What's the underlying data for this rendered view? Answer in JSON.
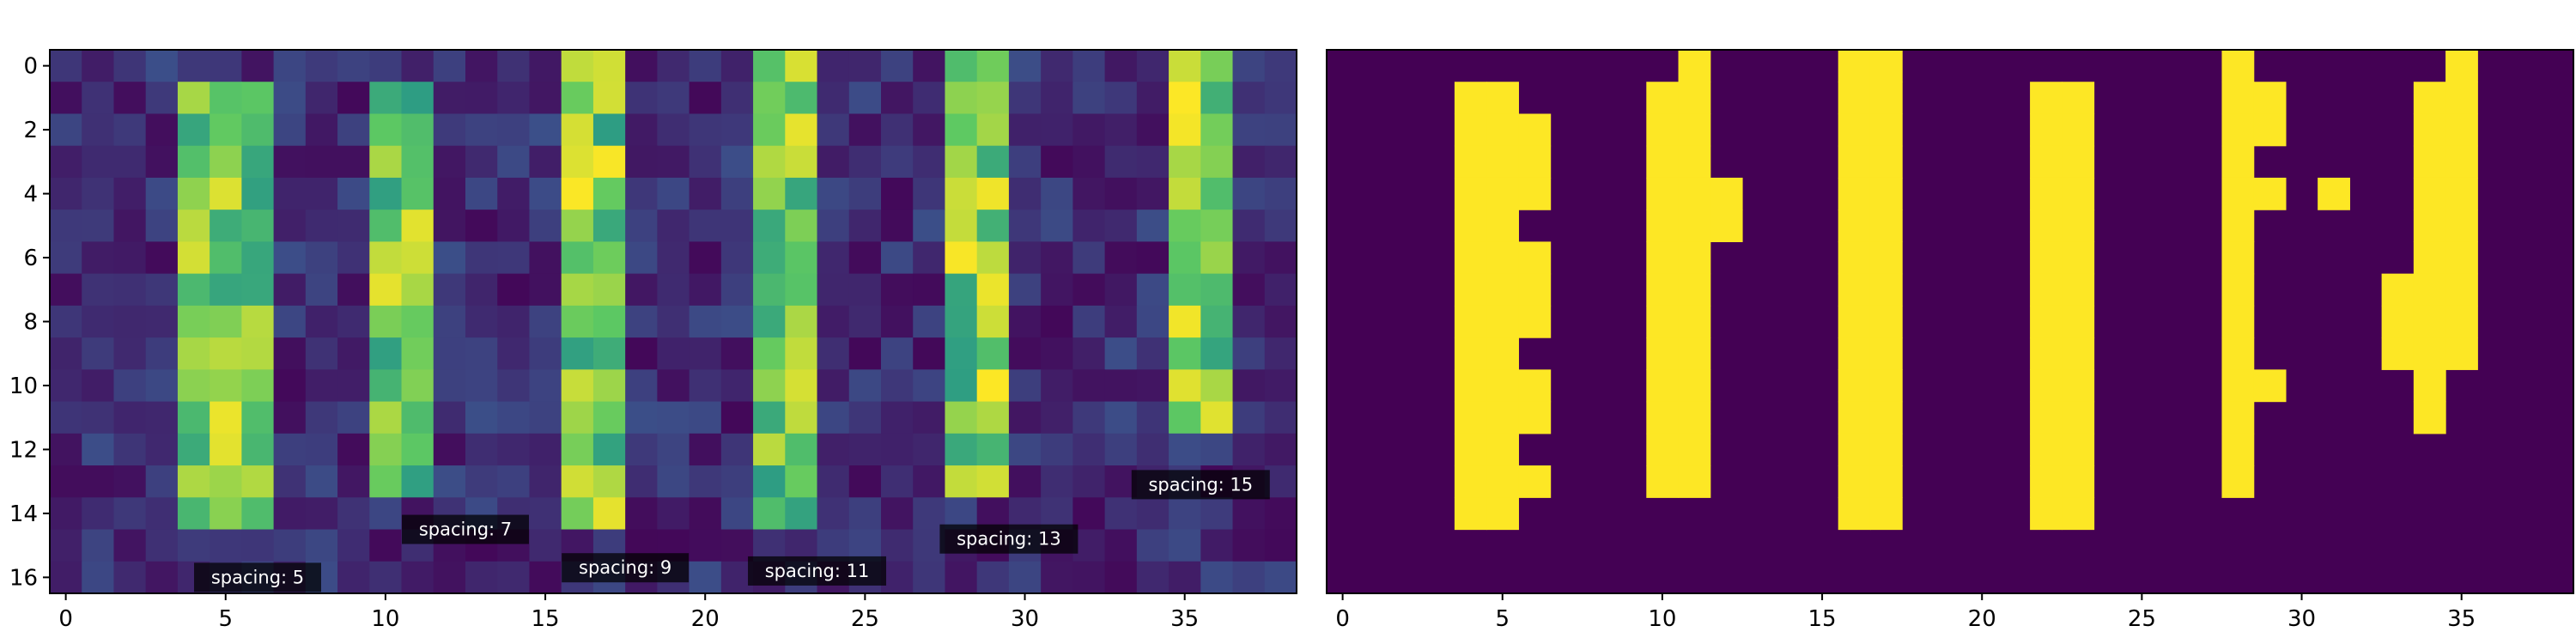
{
  "chart_data": [
    {
      "type": "heatmap",
      "title": "",
      "xlabel": "",
      "ylabel": "",
      "colormap": "viridis",
      "grid": false,
      "xlim": [
        0,
        39
      ],
      "ylim": [
        17,
        0
      ],
      "xticks": [
        "0",
        "5",
        "10",
        "15",
        "20",
        "25",
        "30",
        "35"
      ],
      "yticks": [
        "0",
        "2",
        "4",
        "6",
        "8",
        "10",
        "12",
        "14",
        "16"
      ],
      "bars": [
        {
          "cols": [
            4,
            5,
            6
          ],
          "rows": [
            1,
            14
          ]
        },
        {
          "cols": [
            10,
            11
          ],
          "rows": [
            1,
            13
          ]
        },
        {
          "cols": [
            16,
            17
          ],
          "rows": [
            0,
            14
          ]
        },
        {
          "cols": [
            22,
            23
          ],
          "rows": [
            0,
            14
          ]
        },
        {
          "cols": [
            28,
            29
          ],
          "rows": [
            0,
            13
          ]
        },
        {
          "cols": [
            35,
            36
          ],
          "rows": [
            0,
            11
          ]
        }
      ],
      "annotations": [
        {
          "text": "spacing: 5",
          "x": 6,
          "y": 16
        },
        {
          "text": "spacing: 7",
          "x": 12.5,
          "y": 14.5
        },
        {
          "text": "spacing: 9",
          "x": 17.5,
          "y": 15.7
        },
        {
          "text": "spacing: 11",
          "x": 23.5,
          "y": 15.8
        },
        {
          "text": "spacing: 13",
          "x": 29.5,
          "y": 14.8
        },
        {
          "text": "spacing: 15",
          "x": 35.5,
          "y": 13.1
        }
      ]
    },
    {
      "type": "heatmap",
      "title": "",
      "xlabel": "",
      "ylabel": "",
      "colormap": "binary mask (purple/yellow)",
      "grid": false,
      "xlim": [
        0,
        39
      ],
      "ylim": [
        17,
        0
      ],
      "xticks": [
        "0",
        "5",
        "10",
        "15",
        "20",
        "25",
        "30",
        "35"
      ],
      "background_color": "#440154",
      "foreground_color": "#fde725",
      "on_cells": [
        [
          4,
          1
        ],
        [
          5,
          1
        ],
        [
          4,
          2
        ],
        [
          5,
          2
        ],
        [
          6,
          2
        ],
        [
          4,
          3
        ],
        [
          5,
          3
        ],
        [
          6,
          3
        ],
        [
          4,
          4
        ],
        [
          5,
          4
        ],
        [
          6,
          4
        ],
        [
          4,
          5
        ],
        [
          5,
          5
        ],
        [
          4,
          6
        ],
        [
          5,
          6
        ],
        [
          6,
          6
        ],
        [
          4,
          7
        ],
        [
          5,
          7
        ],
        [
          6,
          7
        ],
        [
          4,
          8
        ],
        [
          5,
          8
        ],
        [
          6,
          8
        ],
        [
          4,
          9
        ],
        [
          5,
          9
        ],
        [
          4,
          10
        ],
        [
          5,
          10
        ],
        [
          6,
          10
        ],
        [
          4,
          11
        ],
        [
          5,
          11
        ],
        [
          6,
          11
        ],
        [
          4,
          12
        ],
        [
          5,
          12
        ],
        [
          4,
          13
        ],
        [
          5,
          13
        ],
        [
          6,
          13
        ],
        [
          4,
          14
        ],
        [
          5,
          14
        ],
        [
          11,
          0
        ],
        [
          10,
          1
        ],
        [
          11,
          1
        ],
        [
          10,
          2
        ],
        [
          11,
          2
        ],
        [
          10,
          3
        ],
        [
          11,
          3
        ],
        [
          10,
          4
        ],
        [
          11,
          4
        ],
        [
          12,
          4
        ],
        [
          10,
          5
        ],
        [
          11,
          5
        ],
        [
          12,
          5
        ],
        [
          10,
          6
        ],
        [
          11,
          6
        ],
        [
          10,
          7
        ],
        [
          11,
          7
        ],
        [
          10,
          8
        ],
        [
          11,
          8
        ],
        [
          10,
          9
        ],
        [
          11,
          9
        ],
        [
          10,
          10
        ],
        [
          11,
          10
        ],
        [
          10,
          11
        ],
        [
          11,
          11
        ],
        [
          10,
          12
        ],
        [
          11,
          12
        ],
        [
          10,
          13
        ],
        [
          11,
          13
        ],
        [
          16,
          0
        ],
        [
          17,
          0
        ],
        [
          16,
          1
        ],
        [
          17,
          1
        ],
        [
          16,
          2
        ],
        [
          17,
          2
        ],
        [
          16,
          3
        ],
        [
          17,
          3
        ],
        [
          16,
          4
        ],
        [
          17,
          4
        ],
        [
          16,
          5
        ],
        [
          17,
          5
        ],
        [
          16,
          6
        ],
        [
          17,
          6
        ],
        [
          16,
          7
        ],
        [
          17,
          7
        ],
        [
          16,
          8
        ],
        [
          17,
          8
        ],
        [
          16,
          9
        ],
        [
          17,
          9
        ],
        [
          16,
          10
        ],
        [
          17,
          10
        ],
        [
          16,
          11
        ],
        [
          17,
          11
        ],
        [
          16,
          12
        ],
        [
          17,
          12
        ],
        [
          16,
          13
        ],
        [
          17,
          13
        ],
        [
          16,
          14
        ],
        [
          17,
          14
        ],
        [
          22,
          1
        ],
        [
          23,
          1
        ],
        [
          22,
          2
        ],
        [
          23,
          2
        ],
        [
          22,
          3
        ],
        [
          23,
          3
        ],
        [
          22,
          4
        ],
        [
          23,
          4
        ],
        [
          22,
          5
        ],
        [
          23,
          5
        ],
        [
          22,
          6
        ],
        [
          23,
          6
        ],
        [
          22,
          7
        ],
        [
          23,
          7
        ],
        [
          22,
          8
        ],
        [
          23,
          8
        ],
        [
          22,
          9
        ],
        [
          23,
          9
        ],
        [
          22,
          10
        ],
        [
          23,
          10
        ],
        [
          22,
          11
        ],
        [
          23,
          11
        ],
        [
          22,
          12
        ],
        [
          23,
          12
        ],
        [
          22,
          13
        ],
        [
          23,
          13
        ],
        [
          22,
          14
        ],
        [
          23,
          14
        ],
        [
          28,
          0
        ],
        [
          28,
          1
        ],
        [
          29,
          1
        ],
        [
          28,
          2
        ],
        [
          29,
          2
        ],
        [
          28,
          3
        ],
        [
          28,
          4
        ],
        [
          29,
          4
        ],
        [
          28,
          5
        ],
        [
          28,
          6
        ],
        [
          28,
          7
        ],
        [
          28,
          8
        ],
        [
          28,
          9
        ],
        [
          28,
          10
        ],
        [
          29,
          10
        ],
        [
          28,
          11
        ],
        [
          28,
          12
        ],
        [
          28,
          13
        ],
        [
          31,
          4
        ],
        [
          35,
          0
        ],
        [
          34,
          1
        ],
        [
          35,
          1
        ],
        [
          34,
          2
        ],
        [
          35,
          2
        ],
        [
          34,
          3
        ],
        [
          35,
          3
        ],
        [
          34,
          4
        ],
        [
          35,
          4
        ],
        [
          34,
          5
        ],
        [
          35,
          5
        ],
        [
          34,
          6
        ],
        [
          35,
          6
        ],
        [
          33,
          7
        ],
        [
          34,
          7
        ],
        [
          35,
          7
        ],
        [
          33,
          8
        ],
        [
          34,
          8
        ],
        [
          35,
          8
        ],
        [
          33,
          9
        ],
        [
          34,
          9
        ],
        [
          35,
          9
        ],
        [
          34,
          10
        ],
        [
          34,
          11
        ]
      ]
    }
  ]
}
